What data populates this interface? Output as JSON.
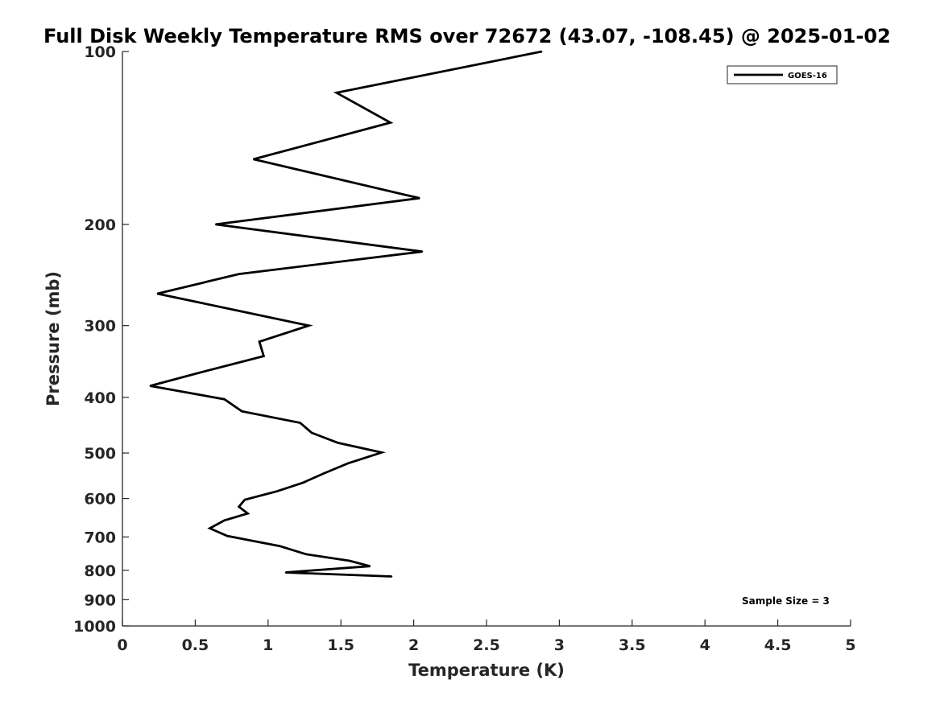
{
  "chart_data": {
    "type": "line",
    "title": "Full Disk Weekly Temperature RMS over 72672 (43.07, -108.45) @ 2025-01-02",
    "xlabel": "Temperature (K)",
    "ylabel": "Pressure (mb)",
    "xlim": [
      0,
      5
    ],
    "ylim": [
      100,
      1000
    ],
    "yscale": "log",
    "y_reversed": true,
    "grid": false,
    "legend_position": "top-right",
    "x_ticks": [
      0,
      0.5,
      1,
      1.5,
      2,
      2.5,
      3,
      3.5,
      4,
      4.5,
      5
    ],
    "x_tick_labels": [
      "0",
      "0.5",
      "1",
      "1.5",
      "2",
      "2.5",
      "3",
      "3.5",
      "4",
      "4.5",
      "5"
    ],
    "y_ticks": [
      100,
      200,
      300,
      400,
      500,
      600,
      700,
      800,
      900,
      1000
    ],
    "y_tick_labels": [
      "100",
      "200",
      "300",
      "400",
      "500",
      "600",
      "700",
      "800",
      "900",
      "1000"
    ],
    "series": [
      {
        "name": "GOES-16",
        "color": "#000000",
        "points": [
          {
            "x": 2.88,
            "y": 100
          },
          {
            "x": 1.47,
            "y": 118
          },
          {
            "x": 1.84,
            "y": 133
          },
          {
            "x": 0.9,
            "y": 154
          },
          {
            "x": 2.04,
            "y": 180
          },
          {
            "x": 0.64,
            "y": 200
          },
          {
            "x": 2.06,
            "y": 223
          },
          {
            "x": 0.8,
            "y": 244
          },
          {
            "x": 0.24,
            "y": 264
          },
          {
            "x": 1.28,
            "y": 300
          },
          {
            "x": 0.94,
            "y": 320
          },
          {
            "x": 0.97,
            "y": 339
          },
          {
            "x": 0.5,
            "y": 364
          },
          {
            "x": 0.19,
            "y": 382
          },
          {
            "x": 0.7,
            "y": 403
          },
          {
            "x": 0.82,
            "y": 423
          },
          {
            "x": 1.22,
            "y": 443
          },
          {
            "x": 1.3,
            "y": 461
          },
          {
            "x": 1.48,
            "y": 480
          },
          {
            "x": 1.78,
            "y": 499
          },
          {
            "x": 1.55,
            "y": 521
          },
          {
            "x": 1.38,
            "y": 543
          },
          {
            "x": 1.24,
            "y": 563
          },
          {
            "x": 1.06,
            "y": 583
          },
          {
            "x": 0.84,
            "y": 603
          },
          {
            "x": 0.8,
            "y": 620
          },
          {
            "x": 0.86,
            "y": 637
          },
          {
            "x": 0.7,
            "y": 655
          },
          {
            "x": 0.6,
            "y": 676
          },
          {
            "x": 0.72,
            "y": 697
          },
          {
            "x": 1.08,
            "y": 726
          },
          {
            "x": 1.26,
            "y": 750
          },
          {
            "x": 1.56,
            "y": 770
          },
          {
            "x": 1.7,
            "y": 787
          },
          {
            "x": 1.12,
            "y": 807
          },
          {
            "x": 1.85,
            "y": 820
          }
        ]
      }
    ],
    "annotations": [
      {
        "text": "Sample Size = 3",
        "position": "bottom-right"
      }
    ]
  }
}
